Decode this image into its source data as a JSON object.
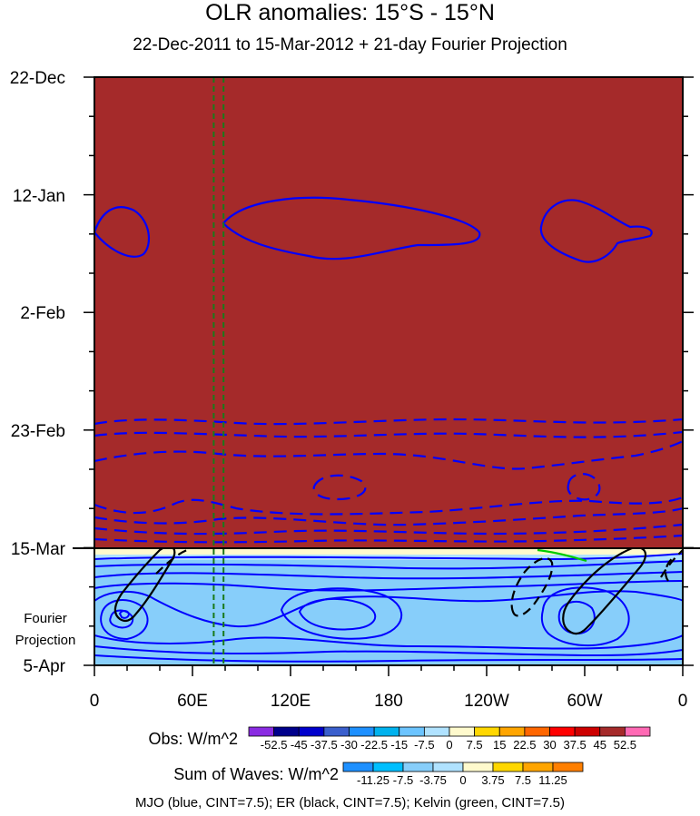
{
  "chart_data": {
    "type": "heatmap",
    "title": "OLR anomalies: 15°S - 15°N",
    "subtitle": "22-Dec-2011 to 15-Mar-2012 + 21-day Fourier Projection",
    "y_tick_labels": [
      "22-Dec",
      "12-Jan",
      "2-Feb",
      "23-Feb",
      "15-Mar",
      "5-Apr"
    ],
    "y_extra_label": [
      "Fourier",
      "Projection"
    ],
    "x_tick_labels": [
      "0",
      "60E",
      "120E",
      "180",
      "120W",
      "60W",
      "0"
    ],
    "xlim": [
      0,
      360
    ],
    "ylim_days": [
      0,
      105
    ],
    "observed_period_days": [
      0,
      84
    ],
    "projection_period_days": [
      84,
      105
    ],
    "observed_fill_level": 52.5,
    "projection_fill_level": -3.75,
    "mjo_phase_lines_lon": [
      73,
      79
    ],
    "legends": {
      "obs": {
        "label": "Obs: W/m^2",
        "levels": [
          "-52.5",
          "-45",
          "-37.5",
          "-30",
          "-22.5",
          "-15",
          "-7.5",
          "0",
          "7.5",
          "15",
          "22.5",
          "30",
          "37.5",
          "45",
          "52.5"
        ],
        "colors": [
          "#8a2be2",
          "#00008b",
          "#0000cd",
          "#3a5fcd",
          "#1e90ff",
          "#00b2ee",
          "#6cc4ff",
          "#b0e2ff",
          "#fffacd",
          "#ffd700",
          "#ffa500",
          "#ff6600",
          "#ff0000",
          "#cd0000",
          "#a52a2a",
          "#ff69b4"
        ]
      },
      "waves": {
        "label": "Sum of Waves: W/m^2",
        "levels": [
          "-11.25",
          "-7.5",
          "-3.75",
          "0",
          "3.75",
          "7.5",
          "11.25"
        ],
        "colors": [
          "#1e90ff",
          "#00bfff",
          "#87cefa",
          "#b0e2ff",
          "#fffacd",
          "#ffd700",
          "#ffa500",
          "#ff7f00"
        ]
      }
    },
    "footnote": "MJO (blue, CINT=7.5); ER (black, CINT=7.5); Kelvin (green, CINT=7.5)",
    "colors": {
      "mjo": "#0000ff",
      "er": "#000000",
      "kelvin": "#00cc00",
      "phase_line": "#1a7a1a"
    }
  }
}
